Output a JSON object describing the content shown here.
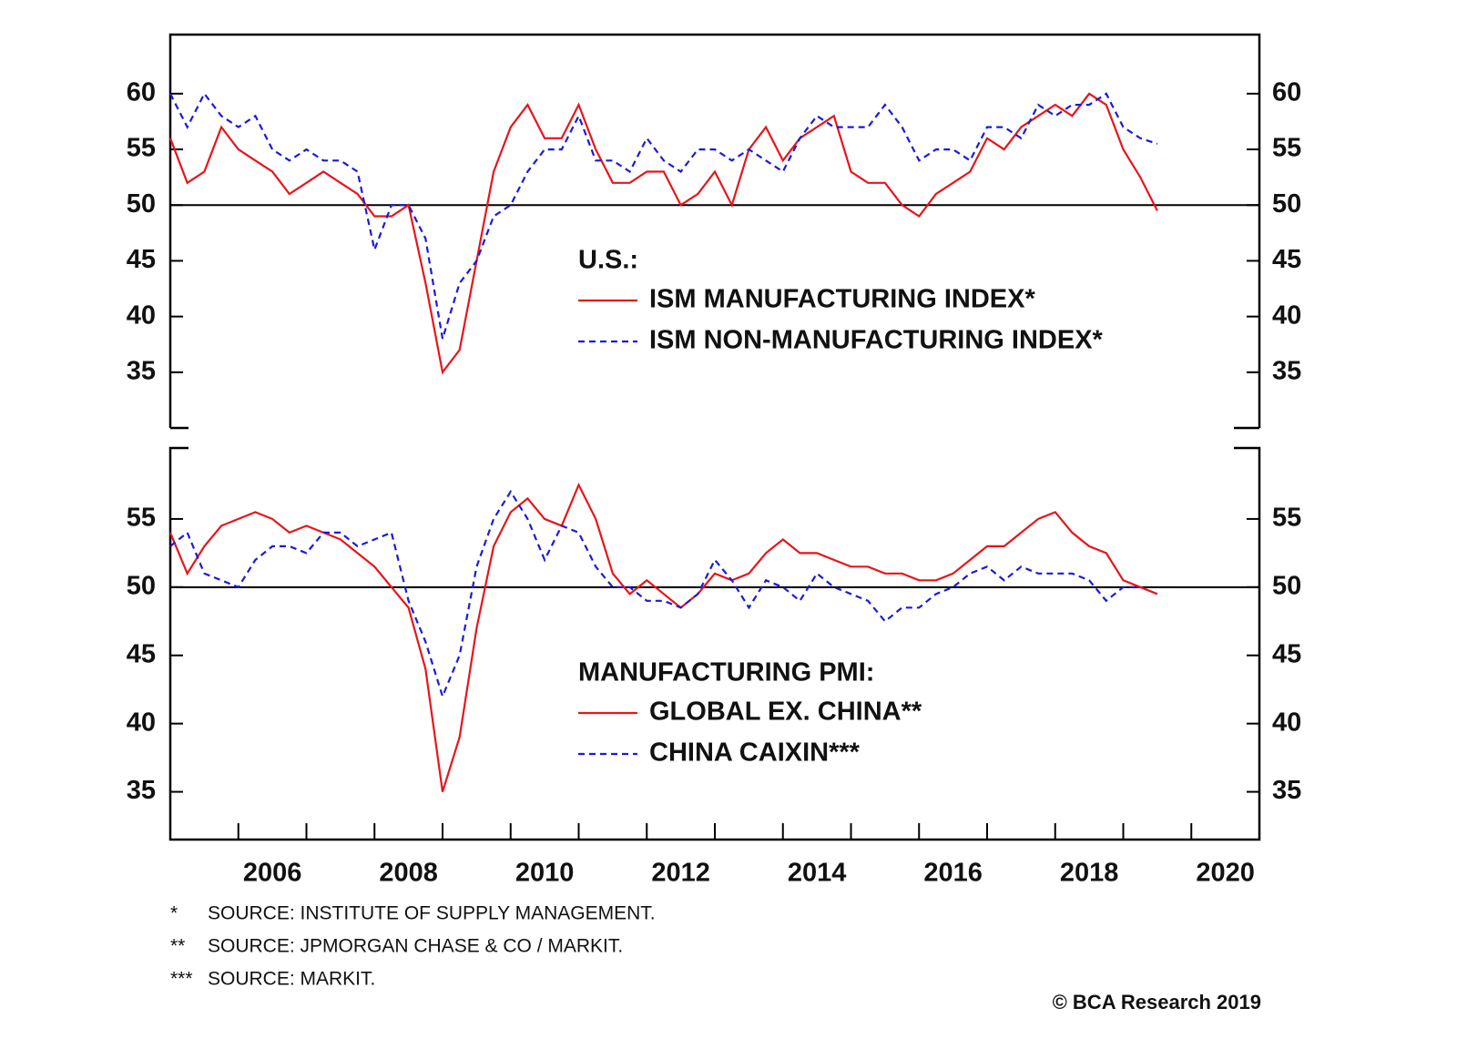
{
  "chart_data": [
    {
      "type": "line",
      "legend_title": "U.S.:",
      "x": [
        2005,
        2005.25,
        2005.5,
        2005.75,
        2006,
        2006.25,
        2006.5,
        2006.75,
        2007,
        2007.25,
        2007.5,
        2007.75,
        2008,
        2008.25,
        2008.5,
        2008.75,
        2009,
        2009.25,
        2009.5,
        2009.75,
        2010,
        2010.25,
        2010.5,
        2010.75,
        2011,
        2011.25,
        2011.5,
        2011.75,
        2012,
        2012.25,
        2012.5,
        2012.75,
        2013,
        2013.25,
        2013.5,
        2013.75,
        2014,
        2014.25,
        2014.5,
        2014.75,
        2015,
        2015.25,
        2015.5,
        2015.75,
        2016,
        2016.25,
        2016.5,
        2016.75,
        2017,
        2017.25,
        2017.5,
        2017.75,
        2018,
        2018.25,
        2018.5,
        2018.75,
        2019,
        2019.25,
        2019.5
      ],
      "series": [
        {
          "name": "ISM MANUFACTURING INDEX*",
          "color": "#e8141b",
          "dash": false,
          "values": [
            56,
            52,
            53,
            57,
            55,
            54,
            53,
            51,
            52,
            53,
            52,
            51,
            49,
            49,
            50,
            43,
            35,
            37,
            45,
            53,
            57,
            59,
            56,
            56,
            59,
            55,
            52,
            52,
            53,
            53,
            50,
            51,
            53,
            50,
            55,
            57,
            54,
            56,
            57,
            58,
            53,
            52,
            52,
            50,
            49,
            51,
            52,
            53,
            56,
            55,
            57,
            58,
            59,
            58,
            60,
            59,
            55,
            52.5,
            49.5
          ]
        },
        {
          "name": "ISM NON-MANUFACTURING INDEX*",
          "color": "#1a1adb",
          "dash": true,
          "values": [
            60,
            57,
            60,
            58,
            57,
            58,
            55,
            54,
            55,
            54,
            54,
            53,
            46,
            50,
            50,
            47,
            38,
            43,
            45,
            49,
            50,
            53,
            55,
            55,
            58,
            54,
            54,
            53,
            56,
            54,
            53,
            55,
            55,
            54,
            55,
            54,
            53,
            56,
            58,
            57,
            57,
            57,
            59,
            57,
            54,
            55,
            55,
            54,
            57,
            57,
            56,
            59,
            58,
            59,
            59,
            60,
            57,
            56,
            55.5
          ]
        }
      ],
      "xlim": [
        2005,
        2021
      ],
      "ylim": [
        30,
        65.3
      ],
      "yticks": [
        35,
        40,
        45,
        50,
        55,
        60
      ],
      "reference_line": 50
    },
    {
      "type": "line",
      "legend_title": "MANUFACTURING PMI:",
      "x": [
        2005,
        2005.25,
        2005.5,
        2005.75,
        2006,
        2006.25,
        2006.5,
        2006.75,
        2007,
        2007.25,
        2007.5,
        2007.75,
        2008,
        2008.25,
        2008.5,
        2008.75,
        2009,
        2009.25,
        2009.5,
        2009.75,
        2010,
        2010.25,
        2010.5,
        2010.75,
        2011,
        2011.25,
        2011.5,
        2011.75,
        2012,
        2012.25,
        2012.5,
        2012.75,
        2013,
        2013.25,
        2013.5,
        2013.75,
        2014,
        2014.25,
        2014.5,
        2014.75,
        2015,
        2015.25,
        2015.5,
        2015.75,
        2016,
        2016.25,
        2016.5,
        2016.75,
        2017,
        2017.25,
        2017.5,
        2017.75,
        2018,
        2018.25,
        2018.5,
        2018.75,
        2019,
        2019.25,
        2019.5
      ],
      "series": [
        {
          "name": "GLOBAL EX. CHINA**",
          "color": "#e8141b",
          "dash": false,
          "values": [
            54,
            51,
            53,
            54.5,
            55,
            55.5,
            55,
            54,
            54.5,
            54,
            53.5,
            52.5,
            51.5,
            50,
            48.5,
            44,
            35,
            39,
            47,
            53,
            55.5,
            56.5,
            55,
            54.5,
            57.5,
            55,
            51,
            49.5,
            50.5,
            49.5,
            48.5,
            49.5,
            51,
            50.5,
            51,
            52.5,
            53.5,
            52.5,
            52.5,
            52,
            51.5,
            51.5,
            51,
            51,
            50.5,
            50.5,
            51,
            52,
            53,
            53,
            54,
            55,
            55.5,
            54,
            53,
            52.5,
            50.5,
            50,
            49.5
          ]
        },
        {
          "name": "CHINA CAIXIN***",
          "color": "#1a1adb",
          "dash": true,
          "values": [
            53,
            54,
            51,
            50.5,
            50,
            52,
            53,
            53,
            52.5,
            54,
            54,
            53,
            53.5,
            54,
            49,
            46,
            42,
            45,
            51.5,
            55,
            57,
            55,
            52,
            54.5,
            54,
            51.5,
            50,
            50,
            49,
            49,
            48.5,
            49.5,
            52,
            50.5,
            48.5,
            50.5,
            50,
            49,
            51,
            50,
            49.5,
            49,
            47.5,
            48.5,
            48.5,
            49.5,
            50,
            51,
            51.5,
            50.5,
            51.5,
            51,
            51,
            51,
            50.5,
            49,
            50,
            50,
            null
          ]
        }
      ],
      "xlim": [
        2005,
        2021
      ],
      "ylim": [
        31.5,
        60.2
      ],
      "yticks": [
        35,
        40,
        45,
        50,
        55
      ],
      "reference_line": 50,
      "xticks": [
        2006,
        2007,
        2008,
        2009,
        2010,
        2011,
        2012,
        2013,
        2014,
        2015,
        2016,
        2017,
        2018,
        2019,
        2020
      ],
      "xticklabels": [
        "2006",
        null,
        "2008",
        null,
        "2010",
        null,
        "2012",
        null,
        "2014",
        null,
        "2016",
        null,
        "2018",
        null,
        "2020"
      ]
    }
  ],
  "notes": [
    {
      "mark": "*",
      "text": "SOURCE: INSTITUTE OF SUPPLY MANAGEMENT."
    },
    {
      "mark": "**",
      "text": "SOURCE: JPMORGAN CHASE & CO / MARKIT."
    },
    {
      "mark": "***",
      "text": "SOURCE: MARKIT."
    }
  ],
  "copyright": "© BCA Research 2019"
}
